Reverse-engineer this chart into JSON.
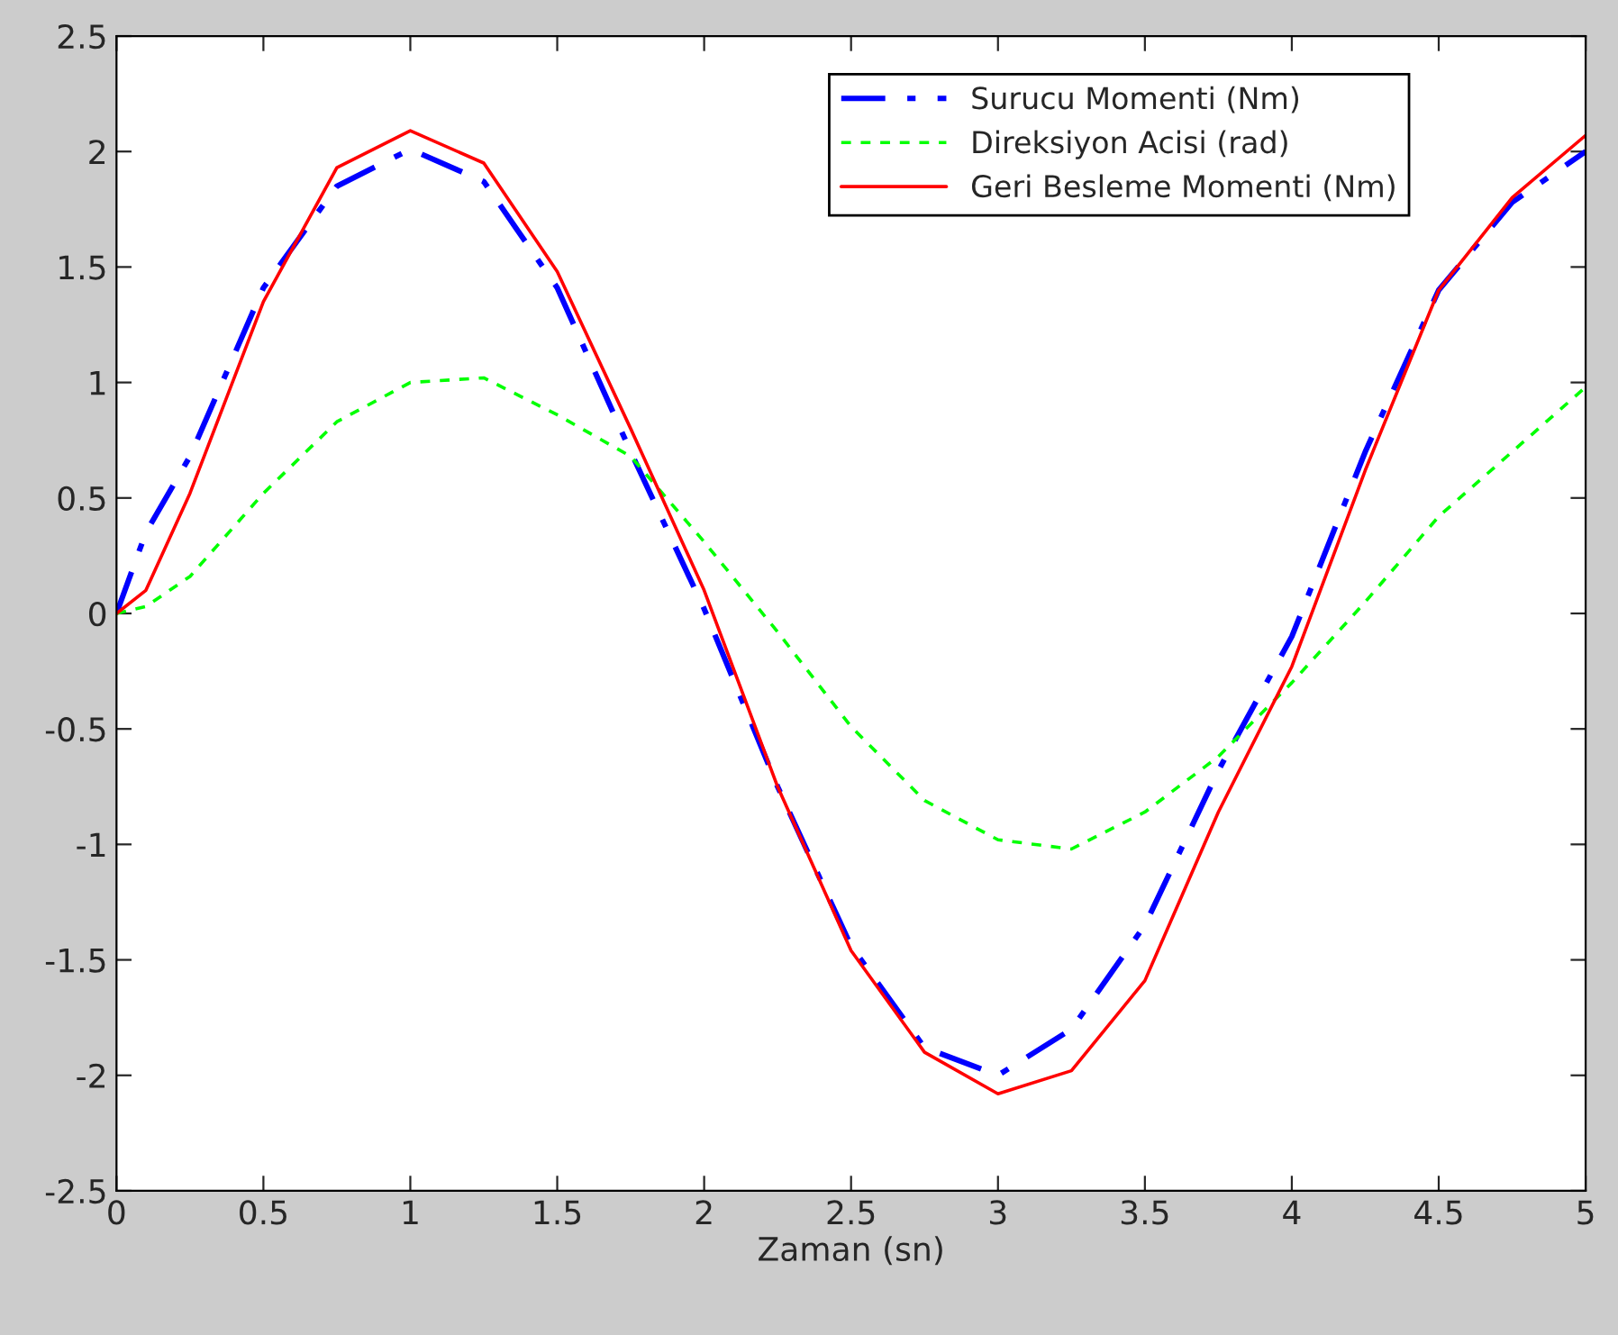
{
  "chart_data": {
    "type": "line",
    "xlabel": "Zaman (sn)",
    "xlim": [
      0,
      5
    ],
    "xticks": [
      0,
      0.5,
      1,
      1.5,
      2,
      2.5,
      3,
      3.5,
      4,
      4.5,
      5
    ],
    "ylim": [
      -2.5,
      2.5
    ],
    "yticks": [
      -2.5,
      -2,
      -1.5,
      -1,
      -0.5,
      0,
      0.5,
      1,
      1.5,
      2,
      2.5
    ],
    "x": [
      0,
      0.1,
      0.25,
      0.5,
      0.75,
      1,
      1.25,
      1.5,
      1.75,
      2,
      2.25,
      2.5,
      2.75,
      3,
      3.25,
      3.5,
      3.75,
      4,
      4.25,
      4.5,
      4.75,
      5
    ],
    "grid": false,
    "legend": "top right",
    "marker": "none",
    "series": [
      {
        "name": "Surucu Momenti (Nm)",
        "color": "#0000ff",
        "line_style": "dashdot",
        "values": [
          0,
          0.35,
          0.68,
          1.41,
          1.85,
          2.01,
          1.87,
          1.41,
          0.7,
          0.02,
          -0.75,
          -1.44,
          -1.88,
          -2.0,
          -1.8,
          -1.35,
          -0.68,
          -0.1,
          0.7,
          1.4,
          1.78,
          2.0
        ]
      },
      {
        "name": "Direksiyon Acisi (rad)",
        "color": "#00ff00",
        "line_style": "dashed",
        "values": [
          0,
          0.03,
          0.16,
          0.52,
          0.83,
          1.0,
          1.02,
          0.86,
          0.68,
          0.31,
          -0.08,
          -0.49,
          -0.81,
          -0.98,
          -1.02,
          -0.86,
          -0.62,
          -0.3,
          0.05,
          0.42,
          0.7,
          0.98
        ]
      },
      {
        "name": "Geri Besleme Momenti (Nm)",
        "color": "#ff0000",
        "line_style": "solid",
        "values": [
          0,
          0.1,
          0.52,
          1.35,
          1.93,
          2.09,
          1.95,
          1.48,
          0.8,
          0.1,
          -0.75,
          -1.46,
          -1.9,
          -2.08,
          -1.98,
          -1.59,
          -0.86,
          -0.23,
          0.62,
          1.4,
          1.8,
          2.07
        ]
      }
    ]
  }
}
